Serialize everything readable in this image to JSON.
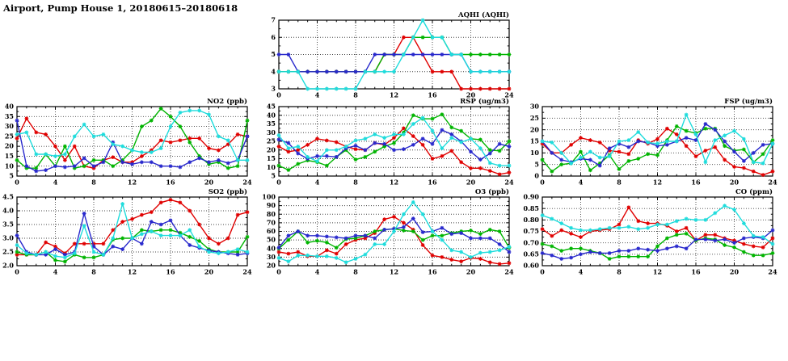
{
  "header": {
    "title": "Airport, Pump House 1, 20180615–20180618"
  },
  "palette": {
    "red": "#e00000",
    "green": "#00b400",
    "blue": "#2828cc",
    "cyan": "#1edcdc"
  },
  "chart_data": [
    {
      "id": "aqhi",
      "type": "line",
      "title": "AQHI (AQHI)",
      "xlim": [
        0,
        24
      ],
      "xticks": [
        0,
        4,
        8,
        12,
        16,
        20,
        24
      ],
      "xlabel": "",
      "ylabel": "",
      "ylim": [
        3,
        7
      ],
      "ytick_values": [
        3,
        4,
        5,
        6,
        7
      ],
      "ytick_labels": [
        "3",
        "4",
        "5",
        "6",
        "7"
      ],
      "grid": true,
      "legend": "none",
      "series": [
        {
          "name": "series-red",
          "color": "#e00000",
          "values": [
            4,
            4,
            4,
            4,
            4,
            4,
            4,
            4,
            4,
            4,
            4,
            5,
            5,
            6,
            6,
            5,
            4,
            4,
            4,
            3,
            3,
            3,
            3,
            3,
            3
          ]
        },
        {
          "name": "series-green",
          "color": "#00b400",
          "values": [
            4,
            4,
            4,
            4,
            4,
            4,
            4,
            4,
            4,
            4,
            4,
            5,
            5,
            5,
            6,
            6,
            6,
            6,
            5,
            5,
            5,
            5,
            5,
            5,
            5
          ]
        },
        {
          "name": "series-blue",
          "color": "#2828cc",
          "values": [
            5,
            5,
            4,
            4,
            4,
            4,
            4,
            4,
            4,
            4,
            5,
            5,
            5,
            5,
            5,
            5,
            5,
            5,
            5,
            5,
            4,
            4,
            4,
            4,
            4
          ]
        },
        {
          "name": "series-cyan",
          "color": "#1edcdc",
          "values": [
            4,
            4,
            4,
            3,
            3,
            3,
            3,
            3,
            3,
            4,
            4,
            4,
            4,
            5,
            6,
            7,
            6,
            6,
            5,
            5,
            4,
            4,
            4,
            4,
            4
          ]
        }
      ]
    },
    {
      "id": "no2",
      "type": "line",
      "title": "NO2 (ppb)",
      "xlim": [
        0,
        24
      ],
      "xticks": [
        0,
        4,
        8,
        12,
        16,
        20,
        24
      ],
      "xlabel": "",
      "ylabel": "",
      "ylim": [
        5,
        40
      ],
      "ytick_values": [
        5,
        10,
        15,
        20,
        25,
        30,
        35,
        40
      ],
      "ytick_labels": [
        "5",
        "10",
        "15",
        "20",
        "25",
        "30",
        "35",
        "40"
      ],
      "grid": true,
      "legend": "none",
      "series": [
        {
          "name": "series-red",
          "color": "#e00000",
          "values": [
            24,
            34,
            27,
            26,
            20,
            13,
            20,
            10,
            9,
            13,
            14.5,
            12,
            12,
            15,
            18,
            23,
            22,
            23,
            24,
            24,
            19,
            18,
            21,
            26,
            25
          ]
        },
        {
          "name": "series-green",
          "color": "#00b400",
          "values": [
            13,
            9,
            9,
            16,
            10,
            20,
            9,
            10,
            13,
            13,
            10,
            13,
            18,
            30,
            33,
            39,
            35,
            30,
            22,
            15,
            11,
            12,
            9,
            10,
            33
          ]
        },
        {
          "name": "series-blue",
          "color": "#2828cc",
          "values": [
            33,
            10,
            7.5,
            8,
            10,
            9.5,
            10,
            14,
            10,
            12,
            22,
            12,
            11,
            12,
            12,
            10,
            10,
            9.5,
            12,
            14,
            12,
            13,
            11.5,
            13,
            25
          ]
        },
        {
          "name": "series-cyan",
          "color": "#1edcdc",
          "values": [
            26,
            27,
            16,
            16,
            15,
            16,
            25,
            31,
            25,
            26,
            21,
            20,
            18,
            17,
            17,
            19,
            30,
            37,
            38,
            38,
            36,
            25,
            23,
            13,
            13
          ]
        }
      ]
    },
    {
      "id": "rsp",
      "type": "line",
      "title": "RSP (ug/m3)",
      "xlim": [
        0,
        24
      ],
      "xticks": [
        0,
        4,
        8,
        12,
        16,
        20,
        24
      ],
      "xlabel": "",
      "ylabel": "",
      "ylim": [
        5,
        45
      ],
      "ytick_values": [
        5,
        10,
        15,
        20,
        25,
        30,
        35,
        40,
        45
      ],
      "ytick_labels": [
        "5",
        "10",
        "15",
        "20",
        "25",
        "30",
        "35",
        "40",
        "45"
      ],
      "grid": true,
      "legend": "none",
      "series": [
        {
          "name": "series-red",
          "color": "#e00000",
          "values": [
            22,
            19,
            20,
            23,
            26.5,
            25.5,
            24.5,
            22,
            20.5,
            20,
            24,
            23,
            27,
            32.5,
            28,
            23,
            15,
            16.5,
            19.5,
            13,
            9.5,
            9.5,
            8,
            6,
            7
          ]
        },
        {
          "name": "series-green",
          "color": "#00b400",
          "values": [
            11,
            8.5,
            12,
            14,
            13,
            11,
            16,
            20,
            14.5,
            16,
            19,
            22,
            24,
            30,
            40,
            38,
            38,
            40.5,
            33,
            31,
            26.5,
            26,
            20,
            19.5,
            25
          ]
        },
        {
          "name": "series-blue",
          "color": "#2828cc",
          "values": [
            26,
            24,
            18,
            15,
            16.5,
            16.5,
            16,
            21,
            22.5,
            20,
            24,
            23.5,
            20,
            20.5,
            23,
            26.5,
            23.5,
            31.5,
            29,
            25,
            19,
            14.5,
            18,
            23.5,
            22
          ]
        },
        {
          "name": "series-cyan",
          "color": "#1edcdc",
          "values": [
            28.5,
            21,
            22,
            16,
            13.5,
            20,
            20,
            22,
            25.5,
            26.5,
            29,
            27,
            29,
            29,
            35,
            38.5,
            31,
            21,
            27,
            24.5,
            26.5,
            21,
            12.5,
            11,
            11
          ]
        }
      ]
    },
    {
      "id": "fsp",
      "type": "line",
      "title": "FSP (ug/m3)",
      "xlim": [
        0,
        24
      ],
      "xticks": [
        0,
        4,
        8,
        12,
        16,
        20,
        24
      ],
      "xlabel": "",
      "ylabel": "",
      "ylim": [
        0,
        30
      ],
      "ytick_values": [
        0,
        5,
        10,
        15,
        20,
        25,
        30
      ],
      "ytick_labels": [
        "0",
        "5",
        "10",
        "15",
        "20",
        "25",
        "30"
      ],
      "grid": true,
      "legend": "none",
      "series": [
        {
          "name": "series-red",
          "color": "#e00000",
          "values": [
            14,
            10,
            10,
            13.5,
            16.5,
            15.5,
            14.5,
            11,
            10.5,
            9.5,
            15.5,
            14,
            16,
            20.5,
            18,
            13,
            8.5,
            11,
            12.5,
            7,
            4,
            3.5,
            2,
            0.5,
            2
          ]
        },
        {
          "name": "series-green",
          "color": "#00b400",
          "values": [
            7,
            2,
            5,
            5.5,
            10.5,
            2.5,
            5.5,
            9,
            3,
            6.5,
            7.5,
            9.5,
            9,
            15.5,
            21.5,
            19.5,
            18.5,
            20.5,
            20.5,
            13,
            11,
            11.5,
            6,
            9.5,
            15.5
          ]
        },
        {
          "name": "series-blue",
          "color": "#2828cc",
          "values": [
            15,
            10,
            7,
            6,
            7.5,
            7,
            4.5,
            12,
            14,
            12.5,
            15,
            14.5,
            13,
            13.5,
            15,
            16.5,
            15.5,
            22.5,
            20,
            15,
            10.5,
            6.5,
            10,
            13.5,
            14
          ]
        },
        {
          "name": "series-cyan",
          "color": "#1edcdc",
          "values": [
            15,
            14.5,
            10,
            5.5,
            8,
            10.5,
            8,
            8.5,
            15,
            15.5,
            19,
            14.5,
            14,
            15,
            15,
            26.5,
            18,
            6,
            15.5,
            17.5,
            19.5,
            16,
            6,
            5.5,
            14
          ]
        }
      ]
    },
    {
      "id": "so2",
      "type": "line",
      "title": "SO2 (ppb)",
      "xlim": [
        0,
        24
      ],
      "xticks": [
        0,
        4,
        8,
        12,
        16,
        20,
        24
      ],
      "xlabel": "",
      "ylabel": "",
      "ylim": [
        2.0,
        4.5
      ],
      "ytick_values": [
        2.0,
        2.5,
        3.0,
        3.5,
        4.0,
        4.5
      ],
      "ytick_labels": [
        "2.0",
        "2.5",
        "3.0",
        "3.5",
        "4.0",
        "4.5"
      ],
      "grid": true,
      "legend": "none",
      "series": [
        {
          "name": "series-red",
          "color": "#e00000",
          "values": [
            2.4,
            2.4,
            2.4,
            2.85,
            2.7,
            2.45,
            2.8,
            2.8,
            2.8,
            2.8,
            3.3,
            3.6,
            3.7,
            3.85,
            3.95,
            4.3,
            4.4,
            4.3,
            4.0,
            3.5,
            3.0,
            2.8,
            3.0,
            3.85,
            3.95
          ]
        },
        {
          "name": "series-green",
          "color": "#00b400",
          "values": [
            2.5,
            2.4,
            2.4,
            2.5,
            2.2,
            2.15,
            2.4,
            2.3,
            2.3,
            2.4,
            2.95,
            3.0,
            3.0,
            3.3,
            3.25,
            3.3,
            3.3,
            3.2,
            3.05,
            2.9,
            2.6,
            2.5,
            2.5,
            2.5,
            3.05
          ]
        },
        {
          "name": "series-blue",
          "color": "#2828cc",
          "values": [
            3.1,
            2.5,
            2.4,
            2.4,
            2.6,
            2.4,
            2.5,
            3.9,
            2.7,
            2.4,
            2.7,
            2.6,
            3.0,
            2.8,
            3.6,
            3.5,
            3.65,
            3.1,
            2.75,
            2.65,
            2.55,
            2.5,
            2.45,
            2.4,
            2.45
          ]
        },
        {
          "name": "series-cyan",
          "color": "#1edcdc",
          "values": [
            2.75,
            2.45,
            2.4,
            2.5,
            2.35,
            2.3,
            2.45,
            3.45,
            2.5,
            2.4,
            3.0,
            4.25,
            3.0,
            3.15,
            3.25,
            3.1,
            3.1,
            3.1,
            3.3,
            2.7,
            2.5,
            2.45,
            2.5,
            2.6,
            2.5
          ]
        }
      ]
    },
    {
      "id": "o3",
      "type": "line",
      "title": "O3 (ppb)",
      "xlim": [
        0,
        24
      ],
      "xticks": [
        0,
        4,
        8,
        12,
        16,
        20,
        24
      ],
      "xlabel": "",
      "ylabel": "",
      "ylim": [
        20,
        100
      ],
      "ytick_values": [
        20,
        30,
        40,
        50,
        60,
        70,
        80,
        90,
        100
      ],
      "ytick_labels": [
        "20",
        "30",
        "40",
        "50",
        "60",
        "70",
        "80",
        "90",
        "100"
      ],
      "grid": true,
      "legend": "none",
      "series": [
        {
          "name": "series-red",
          "color": "#e00000",
          "values": [
            36,
            34,
            36,
            31,
            31,
            38,
            34,
            45,
            50,
            52,
            58,
            74,
            77,
            70,
            62,
            44,
            32,
            30,
            27,
            25,
            29,
            28,
            24,
            22,
            23
          ]
        },
        {
          "name": "series-green",
          "color": "#00b400",
          "values": [
            40,
            50,
            60,
            47,
            49,
            47,
            41,
            51,
            52,
            55,
            60,
            62,
            63,
            61,
            60,
            50,
            55,
            55,
            58,
            60,
            61,
            57,
            62,
            60,
            41
          ]
        },
        {
          "name": "series-blue",
          "color": "#2828cc",
          "values": [
            41,
            55,
            60,
            55,
            55,
            54,
            53,
            52,
            55,
            55,
            52,
            62,
            63,
            65,
            75,
            59,
            60,
            64,
            57,
            58,
            52,
            52,
            52,
            45,
            36
          ]
        },
        {
          "name": "series-cyan",
          "color": "#1edcdc",
          "values": [
            29,
            25,
            32,
            32,
            31,
            31,
            29,
            24,
            28,
            33,
            45,
            45,
            60,
            80,
            94,
            80,
            60,
            50,
            38,
            36,
            30,
            35,
            36,
            38,
            42
          ]
        }
      ]
    },
    {
      "id": "co",
      "type": "line",
      "title": "CO (ppm)",
      "xlim": [
        0,
        24
      ],
      "xticks": [
        0,
        4,
        8,
        12,
        16,
        20,
        24
      ],
      "xlabel": "",
      "ylabel": "",
      "ylim": [
        0.6,
        0.9
      ],
      "ytick_values": [
        0.6,
        0.65,
        0.7,
        0.75,
        0.8,
        0.85,
        0.9
      ],
      "ytick_labels": [
        "0.60",
        "0.65",
        "0.70",
        "0.75",
        "0.80",
        "0.85",
        "0.90"
      ],
      "grid": true,
      "legend": "none",
      "series": [
        {
          "name": "series-red",
          "color": "#e00000",
          "values": [
            0.76,
            0.73,
            0.755,
            0.74,
            0.725,
            0.75,
            0.755,
            0.76,
            0.78,
            0.855,
            0.795,
            0.785,
            0.785,
            0.775,
            0.75,
            0.765,
            0.71,
            0.735,
            0.735,
            0.72,
            0.71,
            0.695,
            0.685,
            0.68,
            0.72
          ]
        },
        {
          "name": "series-green",
          "color": "#00b400",
          "values": [
            0.695,
            0.685,
            0.665,
            0.675,
            0.675,
            0.665,
            0.655,
            0.63,
            0.64,
            0.64,
            0.64,
            0.64,
            0.685,
            0.72,
            0.735,
            0.74,
            0.71,
            0.72,
            0.715,
            0.69,
            0.68,
            0.66,
            0.645,
            0.645,
            0.655
          ]
        },
        {
          "name": "series-blue",
          "color": "#2828cc",
          "values": [
            0.655,
            0.645,
            0.63,
            0.635,
            0.65,
            0.66,
            0.655,
            0.655,
            0.665,
            0.665,
            0.675,
            0.67,
            0.665,
            0.675,
            0.685,
            0.675,
            0.715,
            0.715,
            0.71,
            0.715,
            0.7,
            0.72,
            0.725,
            0.72,
            0.755
          ]
        },
        {
          "name": "series-cyan",
          "color": "#1edcdc",
          "values": [
            0.82,
            0.805,
            0.785,
            0.765,
            0.755,
            0.755,
            0.76,
            0.765,
            0.765,
            0.77,
            0.76,
            0.765,
            0.78,
            0.78,
            0.795,
            0.805,
            0.8,
            0.8,
            0.83,
            0.862,
            0.845,
            0.785,
            0.73,
            0.725,
            0.695
          ]
        }
      ]
    }
  ]
}
